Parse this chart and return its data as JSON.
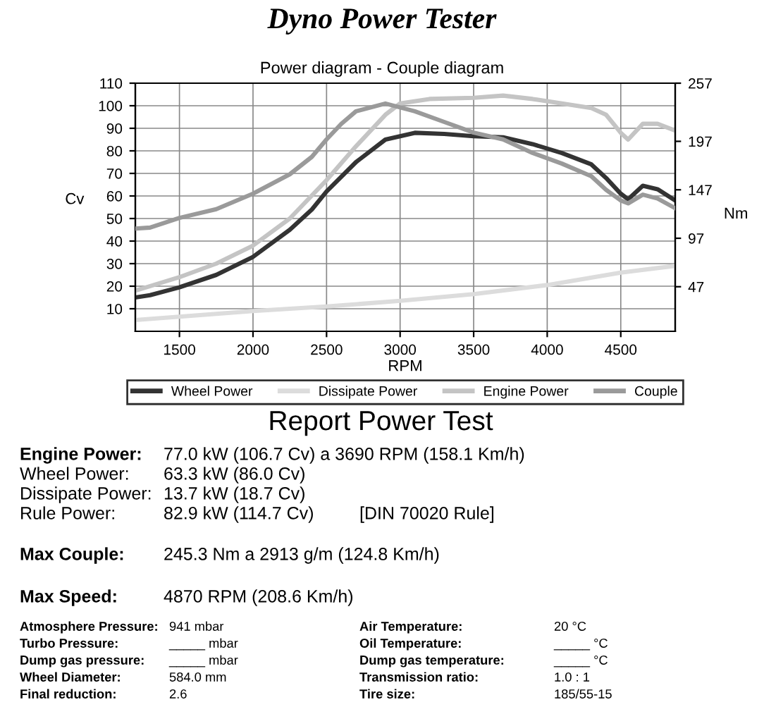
{
  "chart_data": {
    "type": "line",
    "title": "Dyno Power Tester",
    "subtitle": "Power diagram - Couple diagram",
    "xlabel": "RPM",
    "ylabel": "Cv",
    "y2label": "Nm",
    "xlim": [
      1200,
      4870
    ],
    "xticks": [
      1500,
      2000,
      2500,
      3000,
      3500,
      4000,
      4500
    ],
    "ylim": [
      0,
      110
    ],
    "yticks": [
      10,
      20,
      30,
      40,
      50,
      60,
      70,
      80,
      90,
      100,
      110
    ],
    "y2lim": [
      1,
      257
    ],
    "y2ticks": [
      47,
      97,
      147,
      197,
      257
    ],
    "grid": true,
    "legend": "bottom",
    "marker": "none",
    "line_style": "solid",
    "series": [
      {
        "name": "Wheel Power",
        "color": "#333333",
        "x": [
          1200,
          1300,
          1500,
          1750,
          2000,
          2250,
          2400,
          2500,
          2700,
          2900,
          3100,
          3300,
          3500,
          3700,
          3900,
          4100,
          4300,
          4400,
          4500,
          4550,
          4650,
          4750,
          4870
        ],
        "values": [
          15,
          16,
          19.5,
          25,
          33,
          45,
          54,
          62,
          75,
          85,
          88,
          87.5,
          86.5,
          86,
          83,
          79,
          74,
          68,
          61,
          58.5,
          64.5,
          63,
          58
        ]
      },
      {
        "name": "Dissipate Power",
        "color": "#dcdcdc",
        "x": [
          1200,
          1500,
          2000,
          2500,
          3000,
          3500,
          4000,
          4500,
          4870
        ],
        "values": [
          5,
          6.5,
          9,
          11,
          13.5,
          16.5,
          20.5,
          26,
          29
        ]
      },
      {
        "name": "Engine Power",
        "color": "#c4c4c4",
        "x": [
          1200,
          1500,
          1750,
          2000,
          2250,
          2500,
          2700,
          2900,
          3000,
          3200,
          3500,
          3700,
          3900,
          4100,
          4300,
          4400,
          4500,
          4550,
          4650,
          4750,
          4870
        ],
        "values": [
          18,
          24,
          30,
          38,
          50,
          67,
          82,
          96,
          101,
          103,
          103.5,
          104.5,
          103,
          101,
          99,
          96,
          88,
          85,
          92,
          92,
          89
        ]
      },
      {
        "name": "Couple",
        "color": "#9a9a9a",
        "axis": "y2",
        "x": [
          1200,
          1300,
          1500,
          1750,
          2000,
          2250,
          2400,
          2500,
          2600,
          2700,
          2900,
          3100,
          3300,
          3500,
          3700,
          3900,
          4100,
          4300,
          4400,
          4500,
          4550,
          4650,
          4750,
          4870
        ],
        "values": [
          107,
          108,
          118,
          127,
          143,
          163,
          181,
          199,
          215,
          228,
          236,
          228,
          217,
          206,
          199,
          185,
          174,
          161,
          147,
          136,
          133,
          142,
          138,
          128
        ]
      }
    ],
    "annotations": [
      "Report Power Test",
      "Engine Power:",
      "77.0 kW (106.7 Cv) a 3690 RPM (158.1 Km/h)",
      "Wheel Power:",
      "63.3 kW (86.0 Cv)",
      "Dissipate Power:",
      "13.7 kW (18.7 Cv)",
      "Rule Power:",
      "82.9 kW (114.7 Cv)",
      "[DIN 70020 Rule]",
      "Max Couple:",
      "245.3 Nm a 2913 g/m (124.8 Km/h)",
      "Max Speed:",
      "4870 RPM (208.6 Km/h)",
      "Atmosphere Pressure:",
      "941 mbar",
      "Turbo Pressure:",
      "_____ mbar",
      "Dump gas pressure:",
      "_____ mbar",
      "Wheel Diameter:",
      "584.0 mm",
      "Final reduction:",
      "2.6",
      "Air Temperature:",
      "20 °C",
      "Oil Temperature:",
      "_____ °C",
      "Dump gas temperature:",
      "_____ °C",
      "Transmission ratio:",
      "1.0 : 1",
      "Tire size:",
      "185/55-15"
    ]
  }
}
